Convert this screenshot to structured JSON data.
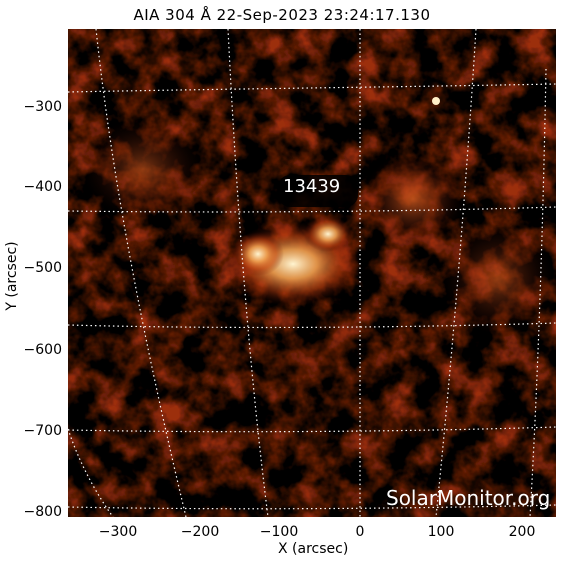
{
  "title": "AIA 304 Å 22-Sep-2023 23:24:17.130",
  "axes": {
    "x_label": "X (arcsec)",
    "y_label": "Y (arcsec)",
    "x_ticks": [
      "−300",
      "−200",
      "−100",
      "0",
      "100",
      "200"
    ],
    "y_ticks": [
      "−300",
      "−400",
      "−500",
      "−600",
      "−700",
      "−800"
    ],
    "x_range": [
      -365,
      240
    ],
    "y_range": [
      -815,
      -210
    ]
  },
  "active_region": {
    "label": "13439"
  },
  "watermark": "SolarMonitor.org",
  "colors": {
    "background": "#000000",
    "plasma_dark": "#3a0600",
    "plasma_mid": "#b83a0a",
    "plasma_bright": "#ffe8b0",
    "grid": "#ffffff"
  }
}
